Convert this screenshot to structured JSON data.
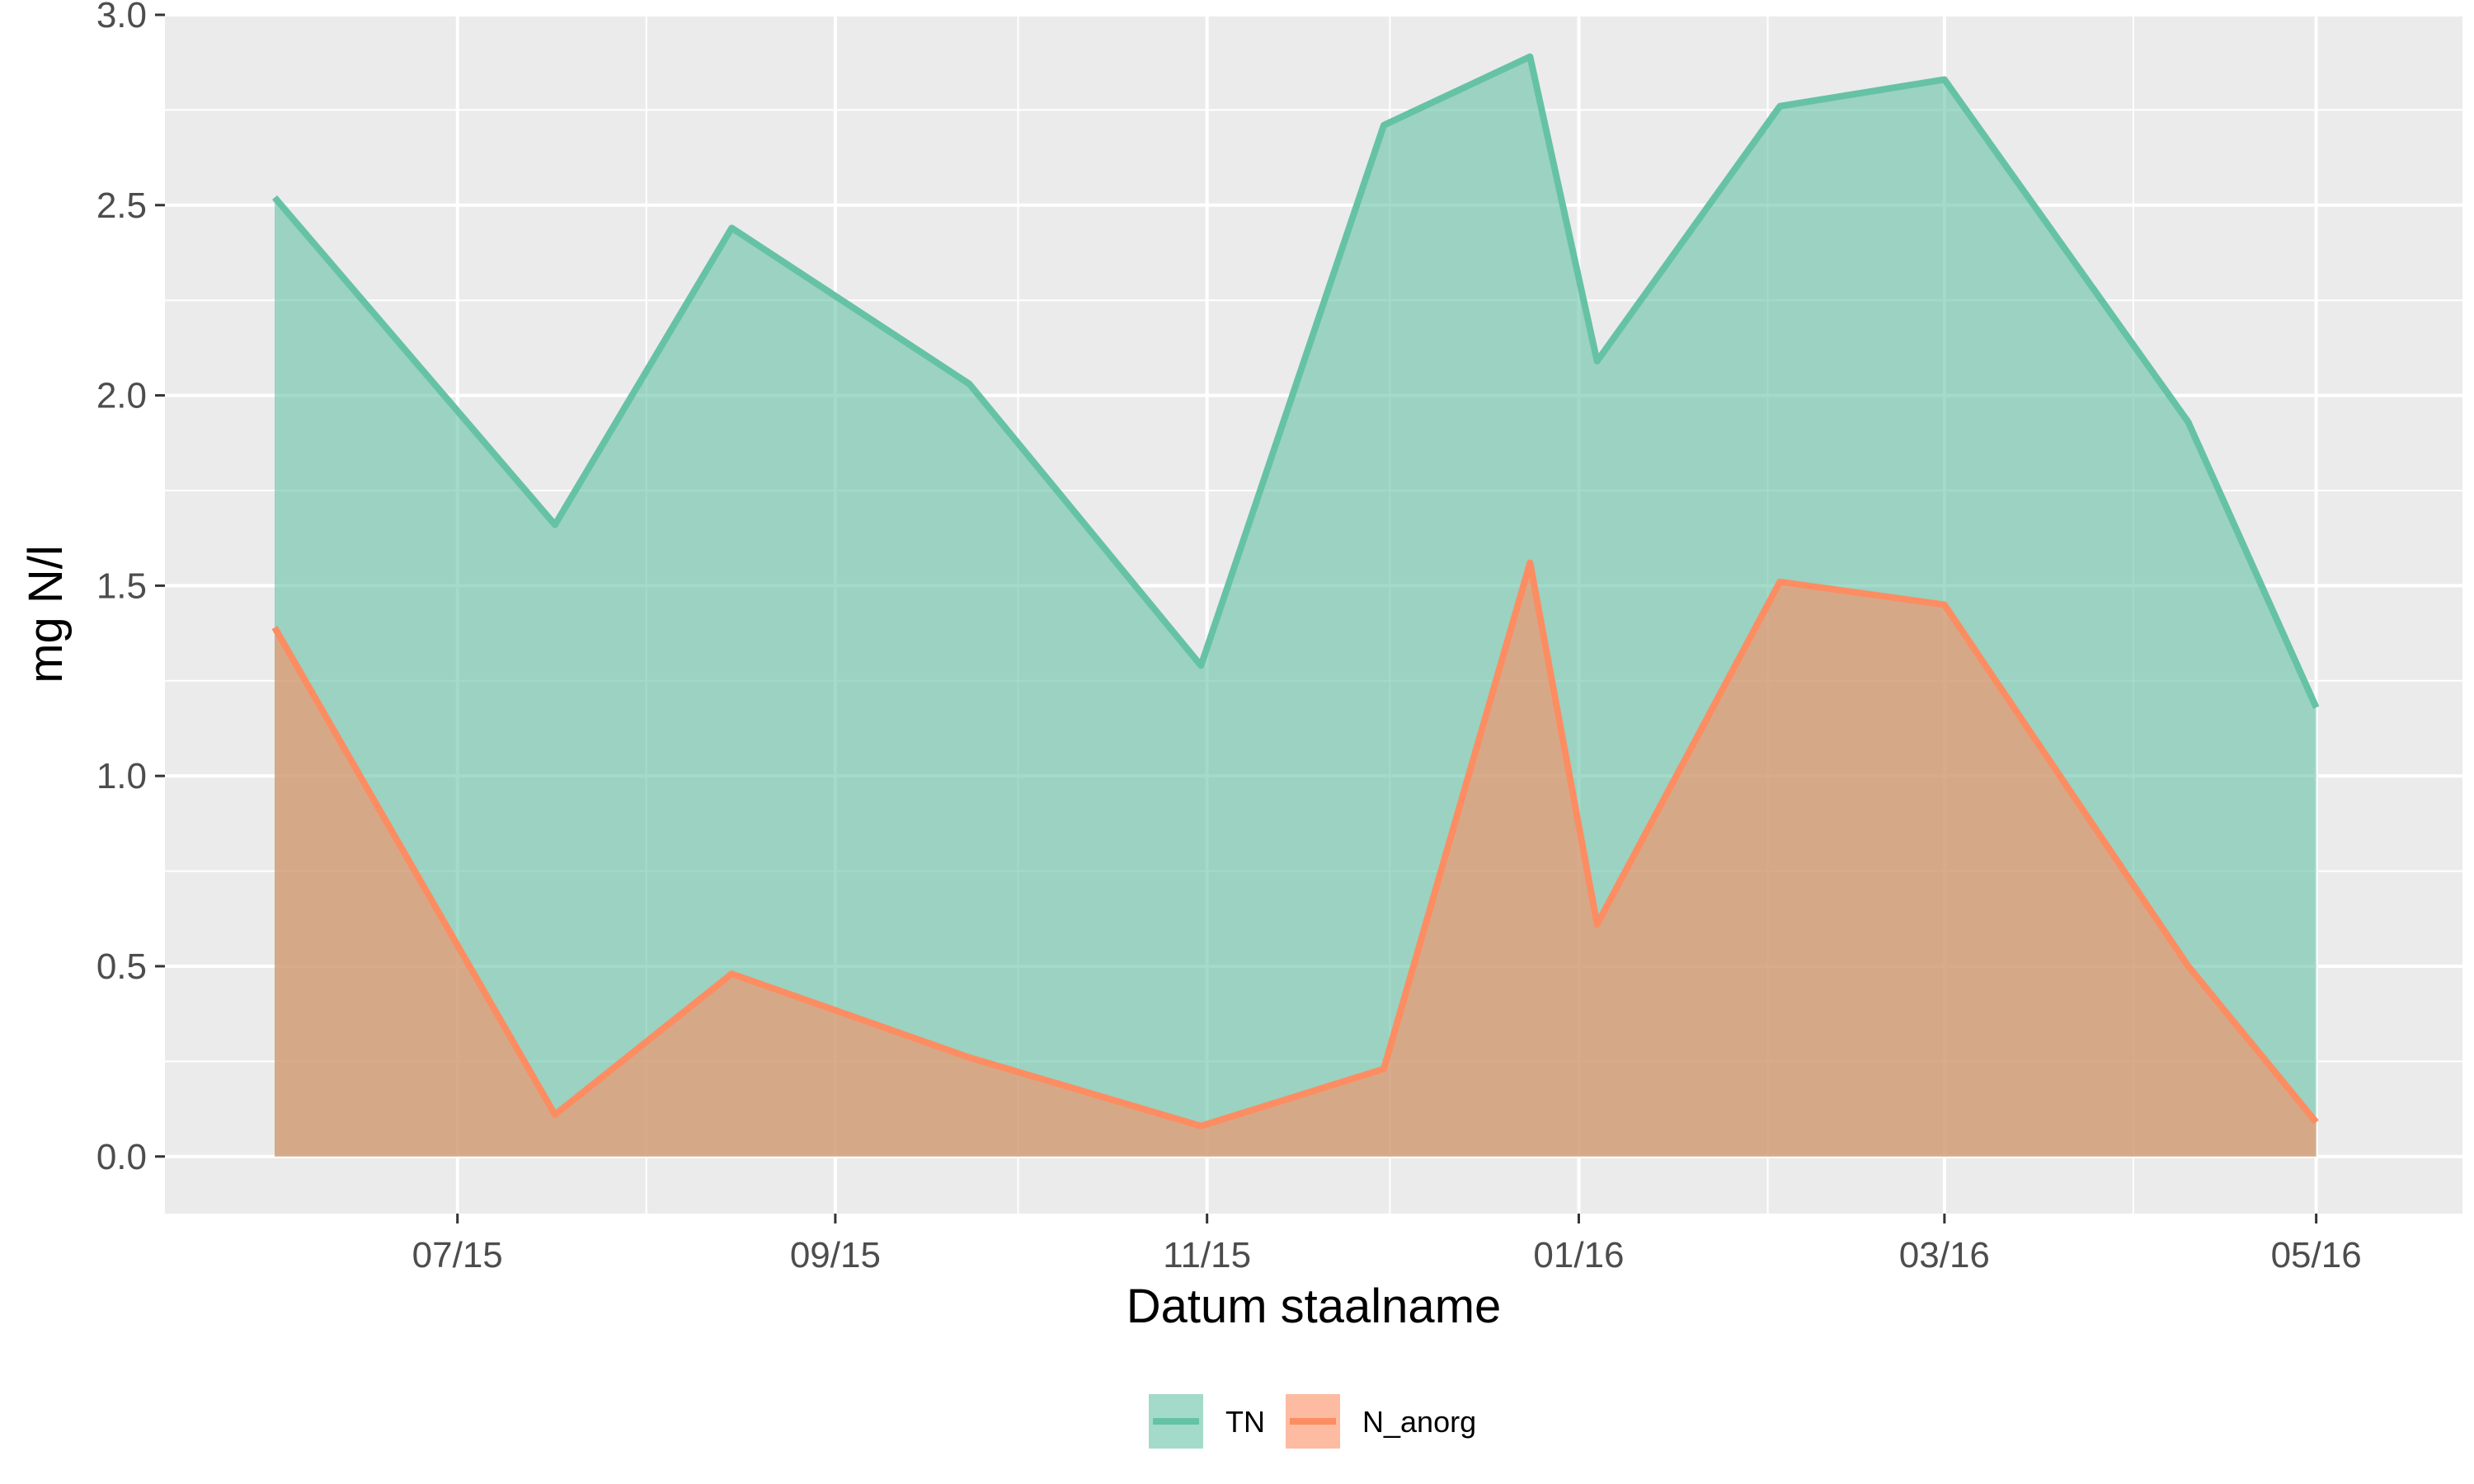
{
  "chart_data": {
    "type": "area",
    "xlabel": "Datum staalname",
    "ylabel": "mg N/l",
    "xlim": [
      "2015-05-14",
      "2016-05-25"
    ],
    "ylim": [
      -0.15,
      3.0
    ],
    "x_ticks": [
      {
        "date": "2015-07-01",
        "label": "07/15"
      },
      {
        "date": "2015-09-01",
        "label": "09/15"
      },
      {
        "date": "2015-11-01",
        "label": "11/15"
      },
      {
        "date": "2016-01-01",
        "label": "01/16"
      },
      {
        "date": "2016-03-01",
        "label": "03/16"
      },
      {
        "date": "2016-05-01",
        "label": "05/16"
      }
    ],
    "x_minor_ticks": [
      "2015-08-01",
      "2015-10-01",
      "2015-12-01",
      "2016-02-01",
      "2016-04-01"
    ],
    "y_ticks": [
      {
        "value": 0.0,
        "label": "0.0"
      },
      {
        "value": 0.5,
        "label": "0.5"
      },
      {
        "value": 1.0,
        "label": "1.0"
      },
      {
        "value": 1.5,
        "label": "1.5"
      },
      {
        "value": 2.0,
        "label": "2.0"
      },
      {
        "value": 2.5,
        "label": "2.5"
      },
      {
        "value": 3.0,
        "label": "3.0"
      }
    ],
    "y_minor_ticks": [
      0.25,
      0.75,
      1.25,
      1.75,
      2.25,
      2.75
    ],
    "grid": true,
    "legend": {
      "position": "bottom"
    },
    "x": [
      "2015-06-01",
      "2015-07-17",
      "2015-08-15",
      "2015-09-23",
      "2015-10-31",
      "2015-11-30",
      "2015-12-24",
      "2016-01-04",
      "2016-02-03",
      "2016-03-01",
      "2016-04-10",
      "2016-05-01"
    ],
    "series": [
      {
        "name": "TN",
        "color": "#66c2a5",
        "values": [
          2.52,
          1.66,
          2.44,
          2.03,
          1.29,
          2.71,
          2.89,
          2.09,
          2.76,
          2.83,
          1.93,
          1.18
        ]
      },
      {
        "name": "N_anorg",
        "color": "#fc8d62",
        "values": [
          1.39,
          0.11,
          0.48,
          0.26,
          0.08,
          0.23,
          1.56,
          0.61,
          1.51,
          1.45,
          0.5,
          0.09
        ]
      }
    ]
  }
}
